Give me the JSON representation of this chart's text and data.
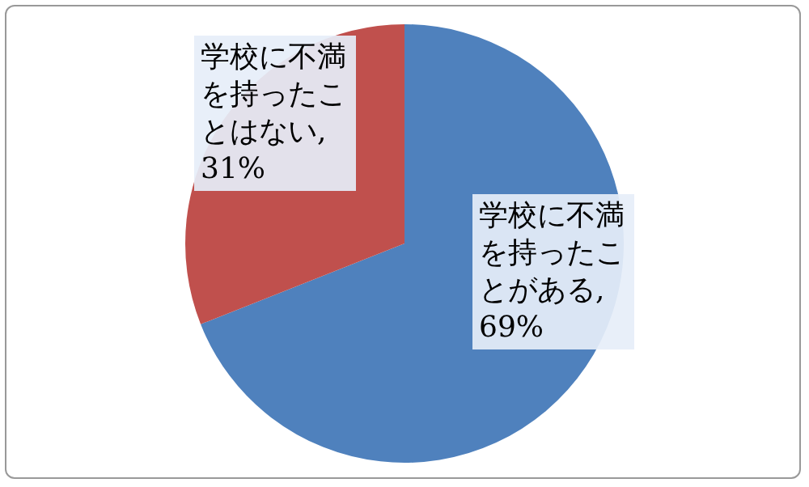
{
  "chart_data": {
    "type": "pie",
    "categories": [
      "学校に不満を持ったことがある, 69%",
      "学校に不満を持ったことはない, 31%"
    ],
    "values": [
      69,
      31
    ],
    "colors": [
      "#4f81bd",
      "#c0504d"
    ],
    "legend": false
  }
}
